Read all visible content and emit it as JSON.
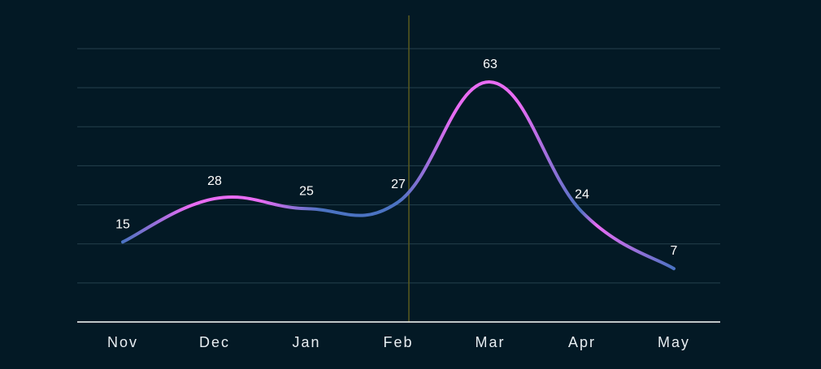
{
  "chart_data": {
    "type": "line",
    "categories": [
      "Nov",
      "Dec",
      "Jan",
      "Feb",
      "Mar",
      "Apr",
      "May"
    ],
    "series": [
      {
        "values": [
          15,
          28,
          25,
          27,
          63,
          24,
          7
        ]
      }
    ],
    "data_labels": [
      "15",
      "28",
      "25",
      "27",
      "63",
      "24",
      "7"
    ],
    "ylim": [
      -9,
      73
    ],
    "grid": true,
    "legend": "none",
    "line_smooth": true,
    "marker_at_category": "Feb"
  },
  "colors": {
    "background": "#031925",
    "grid": "#25404d",
    "axis": "#ffffff",
    "line_gradient_pink": "#e86cf3",
    "line_gradient_blue": "#4b73c2",
    "marker_line": "#5a5a1e",
    "drop_line": "#ffffff"
  }
}
